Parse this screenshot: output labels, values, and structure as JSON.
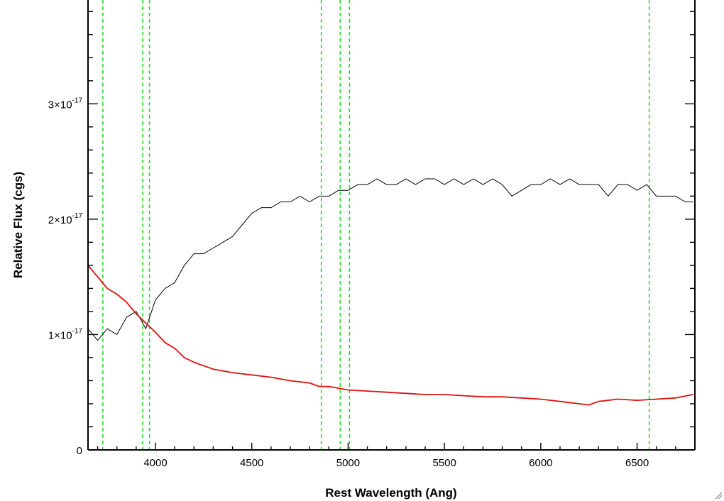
{
  "chart_data": {
    "type": "line",
    "title": "",
    "xlabel": "Rest Wavelength (Ang)",
    "ylabel": "Relative Flux (cgs)",
    "xlim": [
      3650,
      6800
    ],
    "ylim": [
      0,
      3.9e-17
    ],
    "x_ticks": [
      4000,
      4500,
      5000,
      5500,
      6000,
      6500
    ],
    "x_tick_labels": [
      "4000",
      "4500",
      "5000",
      "5500",
      "6000",
      "6500"
    ],
    "y_ticks": [
      0,
      1e-17,
      2e-17,
      3e-17
    ],
    "y_tick_labels": [
      {
        "mantissa": "0",
        "exponent": ""
      },
      {
        "mantissa": "1×10",
        "exponent": "-17"
      },
      {
        "mantissa": "2×10",
        "exponent": "-17"
      },
      {
        "mantissa": "3×10",
        "exponent": "-17"
      }
    ],
    "grid": false,
    "vertical_markers": {
      "style": "dashed",
      "color": "#22dd22",
      "x": [
        3727,
        3934,
        3969,
        4861,
        4959,
        5007,
        6563
      ]
    },
    "series": [
      {
        "color": "#000000",
        "x": [
          3650,
          3700,
          3750,
          3800,
          3850,
          3900,
          3950,
          4000,
          4050,
          4100,
          4150,
          4200,
          4250,
          4300,
          4350,
          4400,
          4450,
          4500,
          4550,
          4600,
          4650,
          4700,
          4750,
          4800,
          4850,
          4900,
          4950,
          5000,
          5050,
          5100,
          5150,
          5200,
          5250,
          5300,
          5350,
          5400,
          5450,
          5500,
          5550,
          5600,
          5650,
          5700,
          5750,
          5800,
          5850,
          5900,
          5950,
          6000,
          6050,
          6100,
          6150,
          6200,
          6250,
          6300,
          6350,
          6400,
          6450,
          6500,
          6550,
          6600,
          6650,
          6700,
          6750,
          6790
        ],
        "y": [
          1.05e-17,
          9.5e-18,
          1.05e-17,
          1e-17,
          1.15e-17,
          1.2e-17,
          1.05e-17,
          1.3e-17,
          1.4e-17,
          1.45e-17,
          1.6e-17,
          1.7e-17,
          1.7e-17,
          1.75e-17,
          1.8e-17,
          1.85e-17,
          1.95e-17,
          2.05e-17,
          2.1e-17,
          2.1e-17,
          2.15e-17,
          2.15e-17,
          2.2e-17,
          2.15e-17,
          2.2e-17,
          2.2e-17,
          2.25e-17,
          2.25e-17,
          2.3e-17,
          2.3e-17,
          2.35e-17,
          2.3e-17,
          2.3e-17,
          2.35e-17,
          2.3e-17,
          2.35e-17,
          2.35e-17,
          2.3e-17,
          2.35e-17,
          2.3e-17,
          2.35e-17,
          2.3e-17,
          2.35e-17,
          2.3e-17,
          2.2e-17,
          2.25e-17,
          2.3e-17,
          2.3e-17,
          2.35e-17,
          2.3e-17,
          2.35e-17,
          2.3e-17,
          2.3e-17,
          2.3e-17,
          2.2e-17,
          2.3e-17,
          2.3e-17,
          2.25e-17,
          2.3e-17,
          2.2e-17,
          2.2e-17,
          2.2e-17,
          2.15e-17,
          2.15e-17
        ]
      },
      {
        "color": "#dd1111",
        "x": [
          3650,
          3700,
          3750,
          3800,
          3850,
          3900,
          3950,
          4000,
          4050,
          4100,
          4150,
          4200,
          4300,
          4400,
          4500,
          4600,
          4700,
          4800,
          4850,
          4900,
          5000,
          5100,
          5200,
          5300,
          5400,
          5500,
          5600,
          5700,
          5800,
          5900,
          6000,
          6100,
          6200,
          6250,
          6300,
          6400,
          6500,
          6600,
          6700,
          6790
        ],
        "y": [
          1.6e-17,
          1.5e-17,
          1.4e-17,
          1.35e-17,
          1.28e-17,
          1.18e-17,
          1.1e-17,
          1.02e-17,
          9.3e-18,
          8.8e-18,
          8e-18,
          7.6e-18,
          7e-18,
          6.7e-18,
          6.5e-18,
          6.3e-18,
          6e-18,
          5.8e-18,
          5.5e-18,
          5.5e-18,
          5.2e-18,
          5.1e-18,
          5e-18,
          4.9e-18,
          4.8e-18,
          4.8e-18,
          4.7e-18,
          4.6e-18,
          4.6e-18,
          4.5e-18,
          4.4e-18,
          4.2e-18,
          4e-18,
          3.9e-18,
          4.2e-18,
          4.4e-18,
          4.3e-18,
          4.4e-18,
          4.5e-18,
          4.8e-18
        ]
      }
    ]
  },
  "icons": {
    "resize": "resize-grip-icon"
  }
}
